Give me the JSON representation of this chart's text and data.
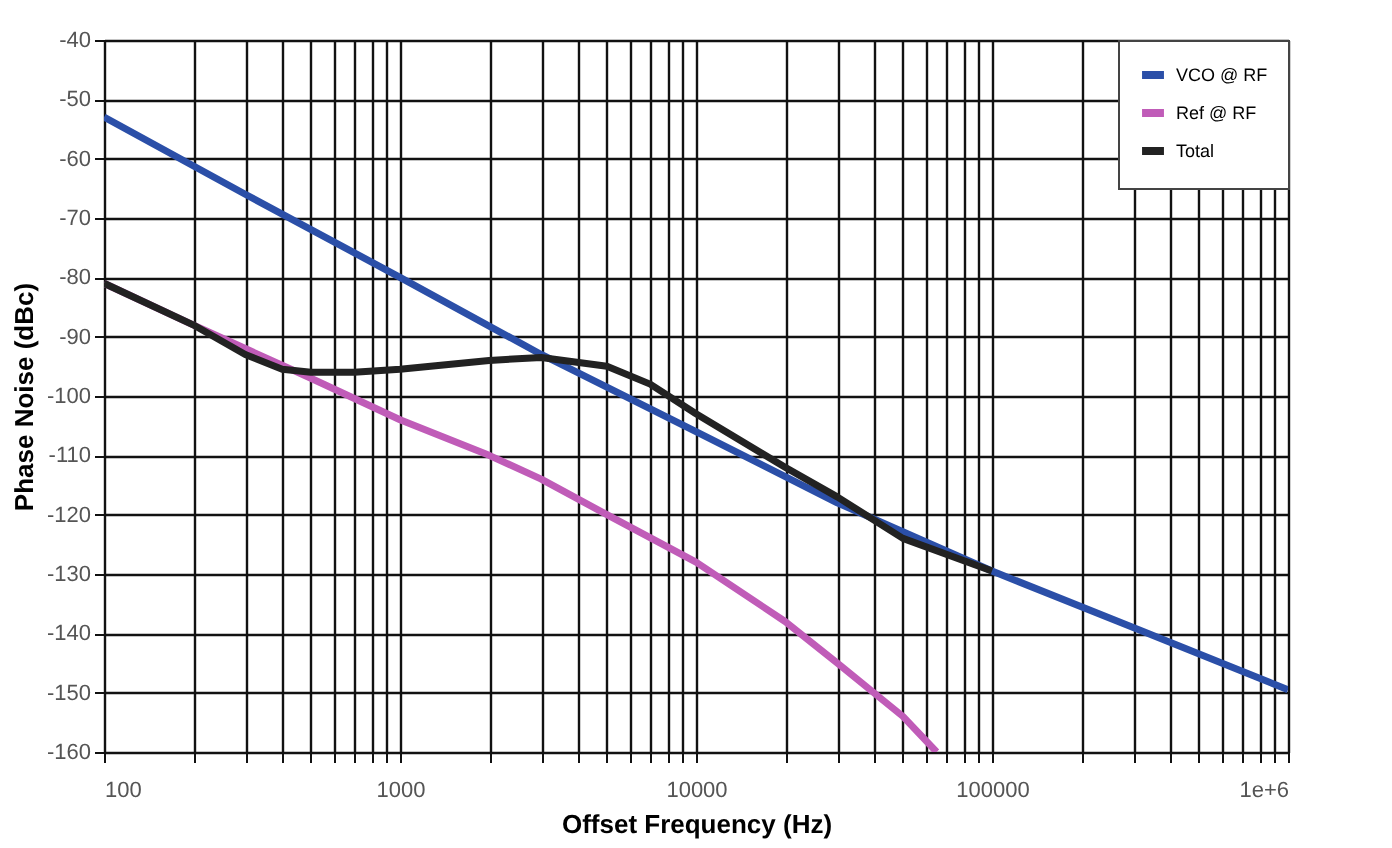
{
  "chart_data": {
    "type": "line",
    "xlabel": "Offset Frequency (Hz)",
    "ylabel": "Phase Noise (dBc)",
    "log": "x",
    "xlim": [
      100,
      1000000
    ],
    "ylim": [
      -160,
      -40
    ],
    "xticks": [
      100,
      {
        "value": 200,
        "label": null
      },
      {
        "value": 300,
        "label": null
      },
      {
        "value": 400,
        "label": null
      },
      {
        "value": 500,
        "label": null
      },
      {
        "value": 600,
        "label": null
      },
      {
        "value": 700,
        "label": null
      },
      {
        "value": 800,
        "label": null
      },
      {
        "value": 900,
        "label": null
      },
      1000,
      {
        "value": 2000,
        "label": null
      },
      {
        "value": 3000,
        "label": null
      },
      {
        "value": 4000,
        "label": null
      },
      {
        "value": 5000,
        "label": null
      },
      {
        "value": 6000,
        "label": null
      },
      {
        "value": 7000,
        "label": null
      },
      {
        "value": 8000,
        "label": null
      },
      {
        "value": 9000,
        "label": null
      },
      10000,
      {
        "value": 20000,
        "label": null
      },
      {
        "value": 30000,
        "label": null
      },
      {
        "value": 40000,
        "label": null
      },
      {
        "value": 50000,
        "label": null
      },
      {
        "value": 60000,
        "label": null
      },
      {
        "value": 70000,
        "label": null
      },
      {
        "value": 80000,
        "label": null
      },
      {
        "value": 90000,
        "label": null
      },
      100000,
      {
        "value": 200000,
        "label": null
      },
      {
        "value": 300000,
        "label": null
      },
      {
        "value": 400000,
        "label": null
      },
      {
        "value": 500000,
        "label": null
      },
      {
        "value": 600000,
        "label": null
      },
      {
        "value": 700000,
        "label": null
      },
      {
        "value": 800000,
        "label": null
      },
      {
        "value": 900000,
        "label": null
      },
      {
        "value": 1000000,
        "label": "1e+6"
      }
    ],
    "yticks": [
      -160,
      -150,
      -140,
      -130,
      -120,
      -110,
      -100,
      -90,
      -80,
      -70,
      -60,
      -50,
      -40
    ],
    "grid": true,
    "legend": "top right",
    "line_style": "solid",
    "marker": "none",
    "series": [
      {
        "name": "VCO @ RF",
        "color": "#2b4fa8",
        "x": [
          100,
          300,
          1000,
          3000,
          10000,
          30000,
          100000,
          300000,
          1000000
        ],
        "values": [
          -53,
          -66,
          -80,
          -93,
          -106,
          -118,
          -129.5,
          -139,
          -149.5
        ]
      },
      {
        "name": "Ref @ RF",
        "color": "#c05cb8",
        "x": [
          100,
          200,
          300,
          500,
          1000,
          2000,
          3000,
          5000,
          10000,
          20000,
          30000,
          50000,
          65000
        ],
        "values": [
          -81,
          -88,
          -92,
          -97,
          -104,
          -110,
          -114,
          -120,
          -128,
          -138,
          -145,
          -154,
          -160
        ]
      },
      {
        "name": "Total",
        "color": "#222222",
        "x": [
          100,
          200,
          300,
          400,
          500,
          700,
          1000,
          2000,
          3000,
          5000,
          7000,
          10000,
          20000,
          30000,
          50000,
          100000
        ],
        "values": [
          -81,
          -88,
          -93,
          -95.5,
          -96,
          -96,
          -95.5,
          -94,
          -93.5,
          -95,
          -98,
          -103,
          -112,
          -117,
          -124,
          -129.5
        ]
      }
    ]
  }
}
